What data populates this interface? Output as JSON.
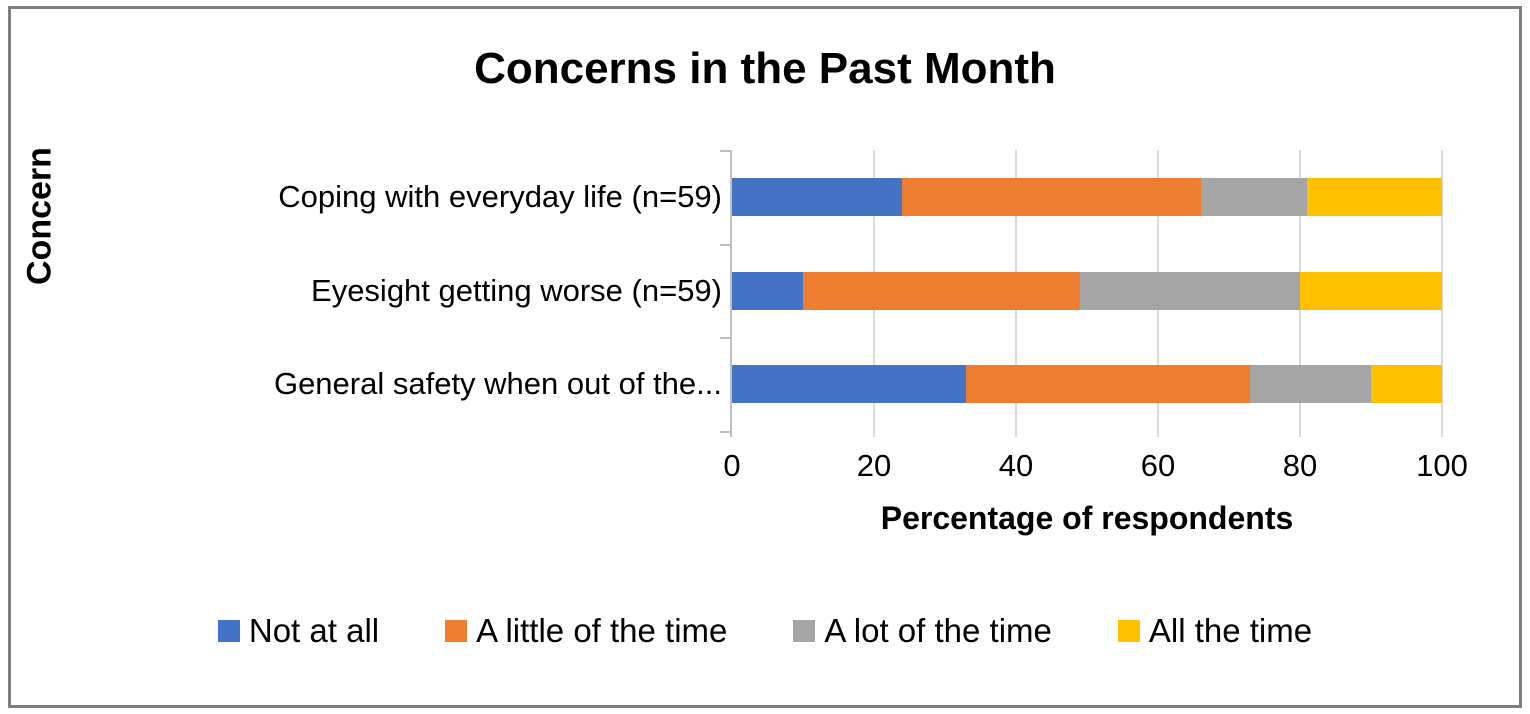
{
  "chart_data": {
    "type": "bar",
    "orientation": "horizontal",
    "stacked": true,
    "title": "Concerns in the Past Month",
    "xlabel": "Percentage of respondents",
    "ylabel": "Concern",
    "xlim": [
      0,
      100
    ],
    "xticks": [
      0,
      20,
      40,
      60,
      80,
      100
    ],
    "grid": true,
    "legend_position": "bottom",
    "categories": [
      "Coping with everyday life (n=59)",
      "Eyesight getting worse (n=59)",
      "General safety when out of the..."
    ],
    "series": [
      {
        "name": "Not at all",
        "color": "#4472C4",
        "values": [
          24,
          10,
          33
        ]
      },
      {
        "name": "A little of the time",
        "color": "#ED7D31",
        "values": [
          42,
          39,
          40
        ]
      },
      {
        "name": "A lot of the time",
        "color": "#A5A5A5",
        "values": [
          15,
          31,
          17
        ]
      },
      {
        "name": "All the time",
        "color": "#FFC000",
        "values": [
          19,
          20,
          10
        ]
      }
    ],
    "colors": {
      "gridline": "#D9D9D9",
      "axis": "#BFBFBF",
      "text": "#000000",
      "frame_border": "#7F7F7F"
    }
  }
}
